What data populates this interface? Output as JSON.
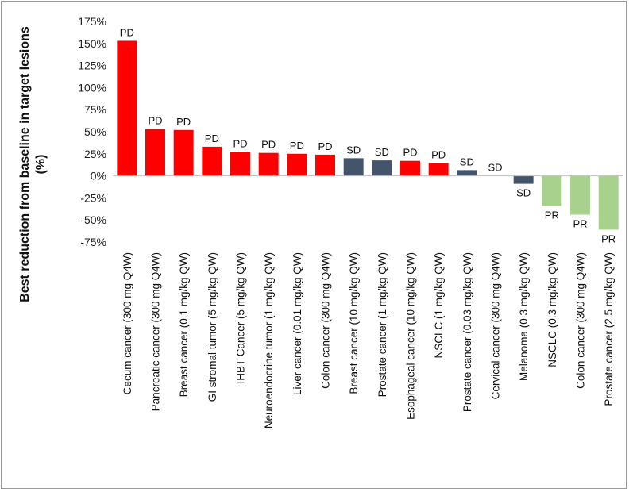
{
  "chart_data": {
    "type": "bar",
    "title": "",
    "xlabel": "",
    "ylabel_line1": "Best reduction from baseline in target lesions",
    "ylabel_line2": "(%)",
    "ylim": [
      -75,
      175
    ],
    "yticks": [
      175,
      150,
      125,
      100,
      75,
      50,
      25,
      0,
      -25,
      -50,
      -75
    ],
    "ytick_labels": [
      "175%",
      "150%",
      "125%",
      "100%",
      "75%",
      "50%",
      "25%",
      "0%",
      "-25%",
      "-50%",
      "-75%"
    ],
    "grid": false,
    "legend": "none",
    "colors": {
      "PD": "#ff0000",
      "SD": "#44546a",
      "PR": "#a9d18e"
    },
    "categories": [
      "Cecum cancer (300 mg Q4W)",
      "Pancreatic cancer (300 mg Q4W)",
      "Breast cancer (0.1 mg/kg QW)",
      "GI stromal tumor (5 mg/kg QW)",
      "IHBT Cancer (5 mg/kg QW)",
      "Neuroendocrine tumor (1 mg/kg QW)",
      "Liver cancer (0.01 mg/kg QW)",
      "Colon cancer (300 mg Q4W)",
      "Breast cancer (10 mg/kg QW)",
      "Prostate cancer (1 mg/kg QW)",
      "Esophageal cancer (10 mg/kg QW)",
      "NSCLC (1 mg/kg QW)",
      "Prostate cancer (0.03 mg/kg QW)",
      "Cervical cancer (300 mg Q4W)",
      "Melanoma (0.3 mg/kg QW)",
      "NSCLC (0.3 mg/kg QW)",
      "Colon cancer (300 mg Q4W)",
      "Prostate cancer (2.5 mg/kg QW)"
    ],
    "values": [
      153,
      53,
      52,
      33,
      27,
      26,
      25,
      24,
      20,
      17.5,
      17,
      14.5,
      6.5,
      0,
      -9,
      -34,
      -44,
      -61
    ],
    "responses": [
      "PD",
      "PD",
      "PD",
      "PD",
      "PD",
      "PD",
      "PD",
      "PD",
      "SD",
      "SD",
      "PD",
      "PD",
      "SD",
      "SD",
      "SD",
      "PR",
      "PR",
      "PR"
    ]
  }
}
